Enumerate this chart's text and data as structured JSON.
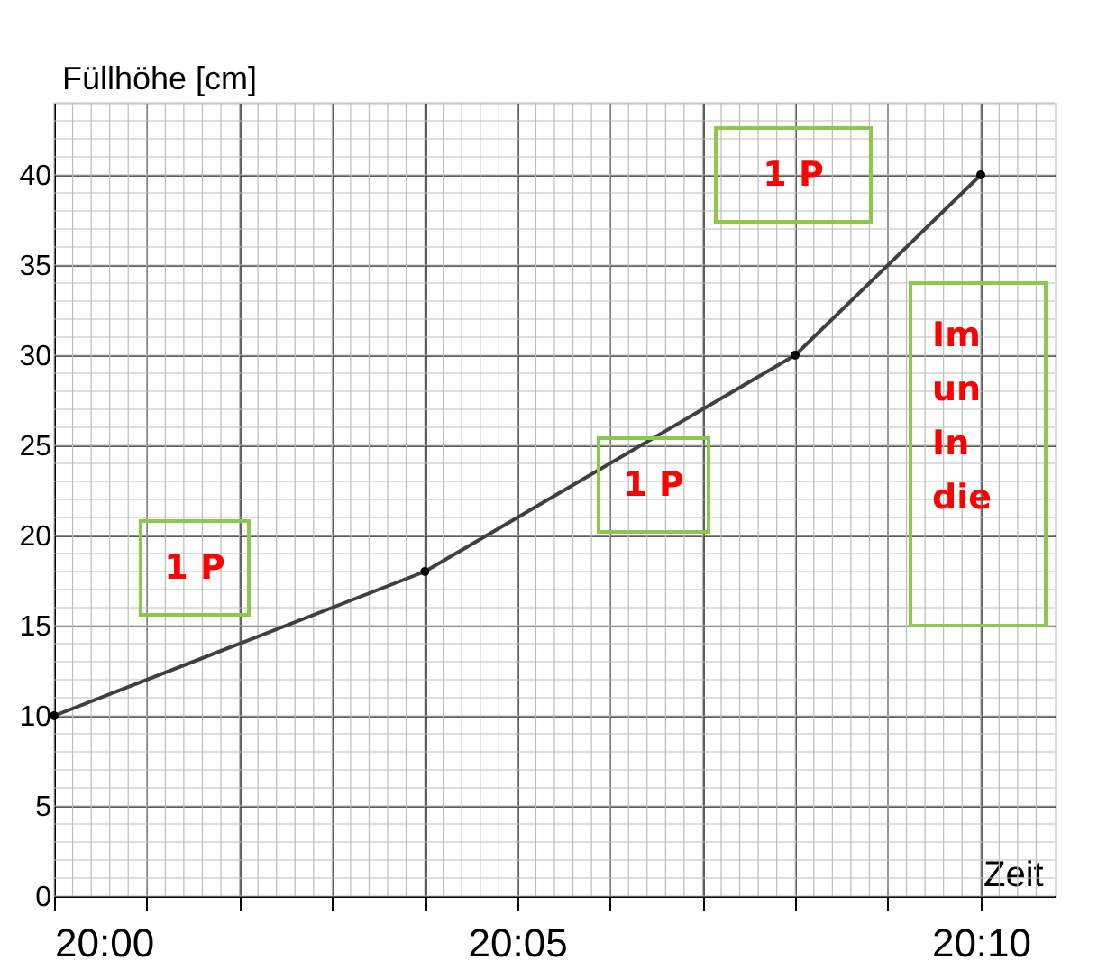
{
  "chart_data": {
    "type": "line",
    "xlabel": "Zeit",
    "ylabel": "Füllhöhe [cm]",
    "x": [
      20.0,
      20.0667,
      20.1333,
      20.1667
    ],
    "series": [
      {
        "color": "#404040",
        "values": [
          10,
          18,
          30,
          40
        ]
      }
    ],
    "marker": "circle",
    "line_style": "solid",
    "grid": true,
    "xlim": [
      20.0,
      20.18
    ],
    "xticks": [
      {
        "value": 20.0,
        "label": "20:00"
      },
      {
        "value": 20.0167,
        "label": null
      },
      {
        "value": 20.0333,
        "label": null
      },
      {
        "value": 20.05,
        "label": null
      },
      {
        "value": 20.0667,
        "label": null
      },
      {
        "value": 20.0833,
        "label": "20:05"
      },
      {
        "value": 20.1,
        "label": null
      },
      {
        "value": 20.1167,
        "label": null
      },
      {
        "value": 20.1333,
        "label": null
      },
      {
        "value": 20.15,
        "label": null
      },
      {
        "value": 20.1667,
        "label": "20:10"
      }
    ],
    "ylim": [
      0,
      44
    ],
    "yticks": [
      0,
      5,
      10,
      15,
      20,
      25,
      30,
      35,
      40
    ],
    "annotations": [
      "1 P",
      "1 P",
      "1 P",
      "Im\nun\n\nIn\ndie"
    ]
  }
}
